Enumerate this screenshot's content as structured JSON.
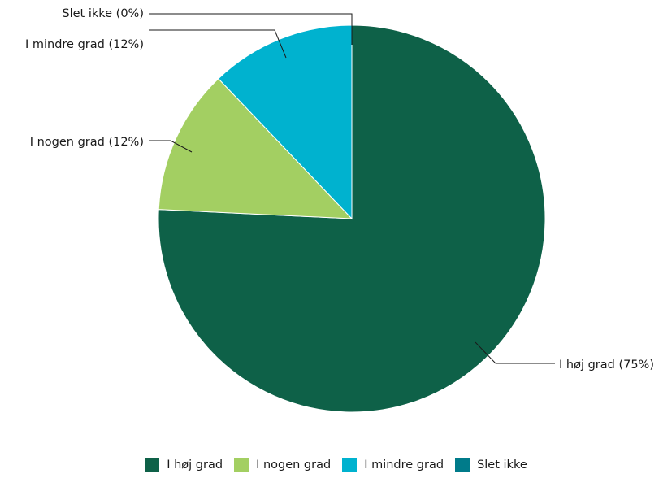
{
  "chart_data": {
    "type": "pie",
    "title": "",
    "start": "12 o'clock",
    "direction": "clockwise",
    "slices": [
      {
        "name": "I høj grad",
        "value": 75,
        "label": "I høj grad (75%)",
        "color": "#0e6148"
      },
      {
        "name": "I nogen grad",
        "value": 12,
        "label": "I nogen grad (12%)",
        "color": "#a3cf62"
      },
      {
        "name": "I mindre grad",
        "value": 12,
        "label": "I mindre grad (12%)",
        "color": "#00b2cf"
      },
      {
        "name": "Slet ikke",
        "value": 0,
        "label": "Slet ikke (0%)",
        "color": "#007b8a"
      }
    ],
    "legend": {
      "position": "bottom",
      "entries": [
        "I høj grad",
        "I nogen grad",
        "I mindre grad",
        "Slet ikke"
      ]
    }
  }
}
